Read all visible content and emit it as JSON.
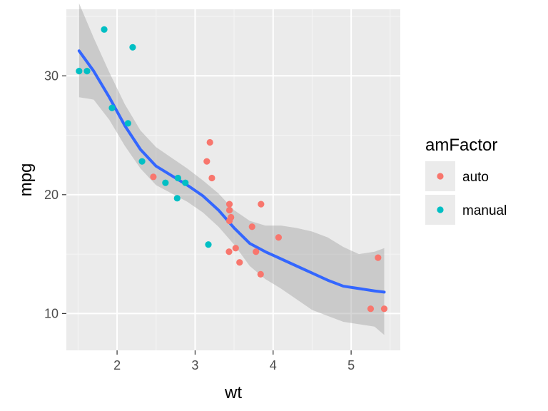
{
  "chart_data": {
    "type": "scatter",
    "xlabel": "wt",
    "ylabel": "mpg",
    "xlim": [
      1.35,
      5.63
    ],
    "ylim": [
      6.9,
      35.6
    ],
    "x_ticks": [
      {
        "value": 2,
        "label": "2"
      },
      {
        "value": 3,
        "label": "3"
      },
      {
        "value": 4,
        "label": "4"
      },
      {
        "value": 5,
        "label": "5"
      }
    ],
    "y_ticks": [
      {
        "value": 10,
        "label": "10"
      },
      {
        "value": 20,
        "label": "20"
      },
      {
        "value": 30,
        "label": "30"
      }
    ],
    "grid": true,
    "background": "#ebebeb",
    "legend": {
      "title": "amFactor",
      "placement": "right",
      "entries": [
        {
          "label": "auto",
          "color": "#f8766d"
        },
        {
          "label": "manual",
          "color": "#00bfc4"
        }
      ]
    },
    "series": [
      {
        "name": "auto",
        "color": "#f8766d",
        "points": [
          [
            3.215,
            21.4
          ],
          [
            3.44,
            18.7
          ],
          [
            3.46,
            18.1
          ],
          [
            3.57,
            14.3
          ],
          [
            3.19,
            24.4
          ],
          [
            3.15,
            22.8
          ],
          [
            3.44,
            19.2
          ],
          [
            3.44,
            17.8
          ],
          [
            4.07,
            16.4
          ],
          [
            3.73,
            17.3
          ],
          [
            3.78,
            15.2
          ],
          [
            5.25,
            10.4
          ],
          [
            5.424,
            10.4
          ],
          [
            5.345,
            14.7
          ],
          [
            2.465,
            21.5
          ],
          [
            3.52,
            15.5
          ],
          [
            3.435,
            15.2
          ],
          [
            3.84,
            13.3
          ],
          [
            3.845,
            19.2
          ]
        ]
      },
      {
        "name": "manual",
        "color": "#00bfc4",
        "points": [
          [
            2.62,
            21.0
          ],
          [
            2.875,
            21.0
          ],
          [
            2.32,
            22.8
          ],
          [
            2.2,
            32.4
          ],
          [
            1.615,
            30.4
          ],
          [
            1.835,
            33.9
          ],
          [
            1.935,
            27.3
          ],
          [
            2.14,
            26.0
          ],
          [
            1.513,
            30.4
          ],
          [
            3.17,
            15.8
          ],
          [
            2.77,
            19.7
          ],
          [
            2.78,
            21.4
          ]
        ]
      }
    ],
    "smooth": {
      "color": "#3366ff",
      "band_color": "#999999",
      "points": [
        [
          1.513,
          32.1
        ],
        [
          1.7,
          30.4
        ],
        [
          1.9,
          28.2
        ],
        [
          2.1,
          25.8
        ],
        [
          2.3,
          23.8
        ],
        [
          2.5,
          22.4
        ],
        [
          2.7,
          21.6
        ],
        [
          2.9,
          20.8
        ],
        [
          3.1,
          19.9
        ],
        [
          3.3,
          18.7
        ],
        [
          3.5,
          17.2
        ],
        [
          3.7,
          15.9
        ],
        [
          3.9,
          15.2
        ],
        [
          4.1,
          14.6
        ],
        [
          4.3,
          14.0
        ],
        [
          4.5,
          13.4
        ],
        [
          4.7,
          12.8
        ],
        [
          4.9,
          12.3
        ],
        [
          5.1,
          12.1
        ],
        [
          5.3,
          11.9
        ],
        [
          5.424,
          11.8
        ]
      ],
      "band_upper": [
        [
          1.513,
          36.1
        ],
        [
          1.7,
          33.2
        ],
        [
          1.9,
          30.3
        ],
        [
          2.1,
          27.6
        ],
        [
          2.3,
          25.4
        ],
        [
          2.5,
          24.0
        ],
        [
          2.7,
          23.1
        ],
        [
          2.9,
          22.2
        ],
        [
          3.1,
          21.2
        ],
        [
          3.3,
          20.1
        ],
        [
          3.5,
          18.7
        ],
        [
          3.7,
          17.8
        ],
        [
          3.9,
          17.4
        ],
        [
          4.1,
          17.4
        ],
        [
          4.3,
          17.2
        ],
        [
          4.5,
          16.9
        ],
        [
          4.7,
          16.4
        ],
        [
          4.9,
          15.6
        ],
        [
          5.1,
          15.0
        ],
        [
          5.3,
          15.2
        ],
        [
          5.424,
          15.5
        ]
      ],
      "band_lower": [
        [
          1.513,
          28.2
        ],
        [
          1.7,
          28.0
        ],
        [
          1.9,
          26.3
        ],
        [
          2.1,
          24.1
        ],
        [
          2.3,
          22.2
        ],
        [
          2.5,
          20.8
        ],
        [
          2.7,
          20.1
        ],
        [
          2.9,
          19.4
        ],
        [
          3.1,
          18.5
        ],
        [
          3.3,
          17.3
        ],
        [
          3.5,
          15.8
        ],
        [
          3.7,
          14.0
        ],
        [
          3.9,
          12.9
        ],
        [
          4.1,
          12.1
        ],
        [
          4.3,
          11.2
        ],
        [
          4.5,
          10.3
        ],
        [
          4.7,
          9.8
        ],
        [
          4.9,
          9.3
        ],
        [
          5.1,
          9.1
        ],
        [
          5.3,
          8.9
        ],
        [
          5.424,
          8.2
        ]
      ]
    }
  }
}
